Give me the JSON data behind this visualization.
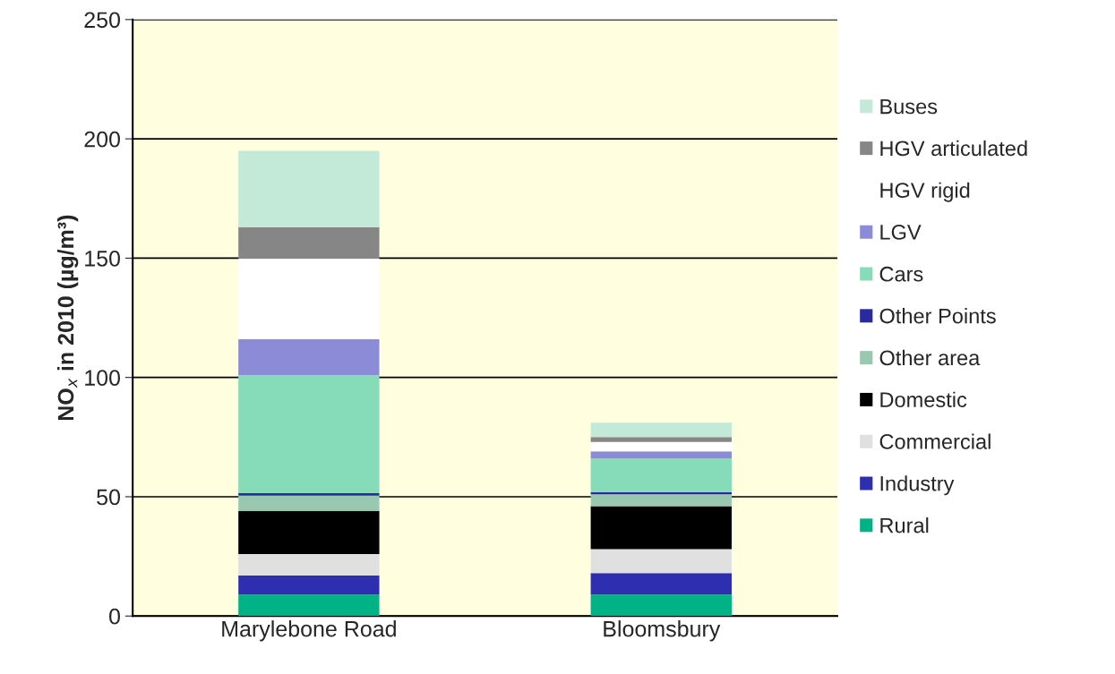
{
  "chart_data": {
    "type": "bar",
    "stacked": true,
    "ylabel": "NO$_{x}$ in 2010 (µg/m³)",
    "categories": [
      "Marylebone Road",
      "Bloomsbury"
    ],
    "series": [
      {
        "name": "Rural",
        "color": "#00b386",
        "values": [
          9,
          9
        ]
      },
      {
        "name": "Industry",
        "color": "#2e2eb0",
        "values": [
          8,
          9
        ]
      },
      {
        "name": "Commercial",
        "color": "#e0e0e0",
        "values": [
          9,
          10
        ]
      },
      {
        "name": "Domestic",
        "color": "#000000",
        "values": [
          18,
          18
        ]
      },
      {
        "name": "Other area",
        "color": "#98c8b0",
        "values": [
          6.5,
          5
        ]
      },
      {
        "name": "Other Points",
        "color": "#2a2aa0",
        "values": [
          1,
          1
        ]
      },
      {
        "name": "Cars",
        "color": "#86dbb8",
        "values": [
          49.5,
          14
        ]
      },
      {
        "name": "LGV",
        "color": "#8b8bd8",
        "values": [
          15,
          3
        ]
      },
      {
        "name": "HGV rigid",
        "color": "#ffffff",
        "values": [
          34,
          4
        ]
      },
      {
        "name": "HGV articulated",
        "color": "#868686",
        "values": [
          13,
          2
        ]
      },
      {
        "name": "Buses",
        "color": "#c3ead8",
        "values": [
          32,
          6
        ]
      }
    ],
    "ylim": [
      0,
      250
    ],
    "yticks": [
      0,
      50,
      100,
      150,
      200,
      250
    ],
    "grid": "y",
    "legend": "right"
  }
}
